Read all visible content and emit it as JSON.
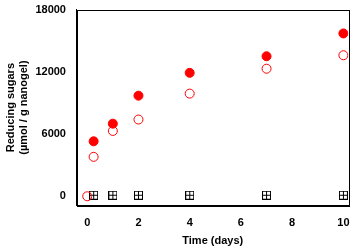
{
  "chart_data": {
    "type": "scatter",
    "x_label": "Time (days)",
    "y_label": [
      "Reducing sugars",
      "(µmol / g nanogel)"
    ],
    "x": [
      0,
      0.25,
      1,
      2,
      4,
      7,
      10
    ],
    "series": [
      {
        "color": "#ff0000",
        "marker": "circle",
        "values": [
          null,
          5300,
          7000,
          9700,
          11900,
          13500,
          15700
        ]
      },
      {
        "color": "#ff0000",
        "marker": "circle_open",
        "values": [
          0,
          3800,
          6300,
          7400,
          9900,
          12300,
          13600
        ]
      },
      {
        "color": "#000000",
        "marker": "square_plus",
        "values": [
          null,
          100,
          100,
          100,
          100,
          100,
          100
        ]
      }
    ],
    "xlim": [
      -0.4,
      10.2
    ],
    "xticks": [
      0,
      2,
      4,
      6,
      8,
      10
    ],
    "ylim": [
      -900,
      18000
    ],
    "yticks": [
      0,
      6000,
      12000,
      18000
    ],
    "grid": false
  }
}
